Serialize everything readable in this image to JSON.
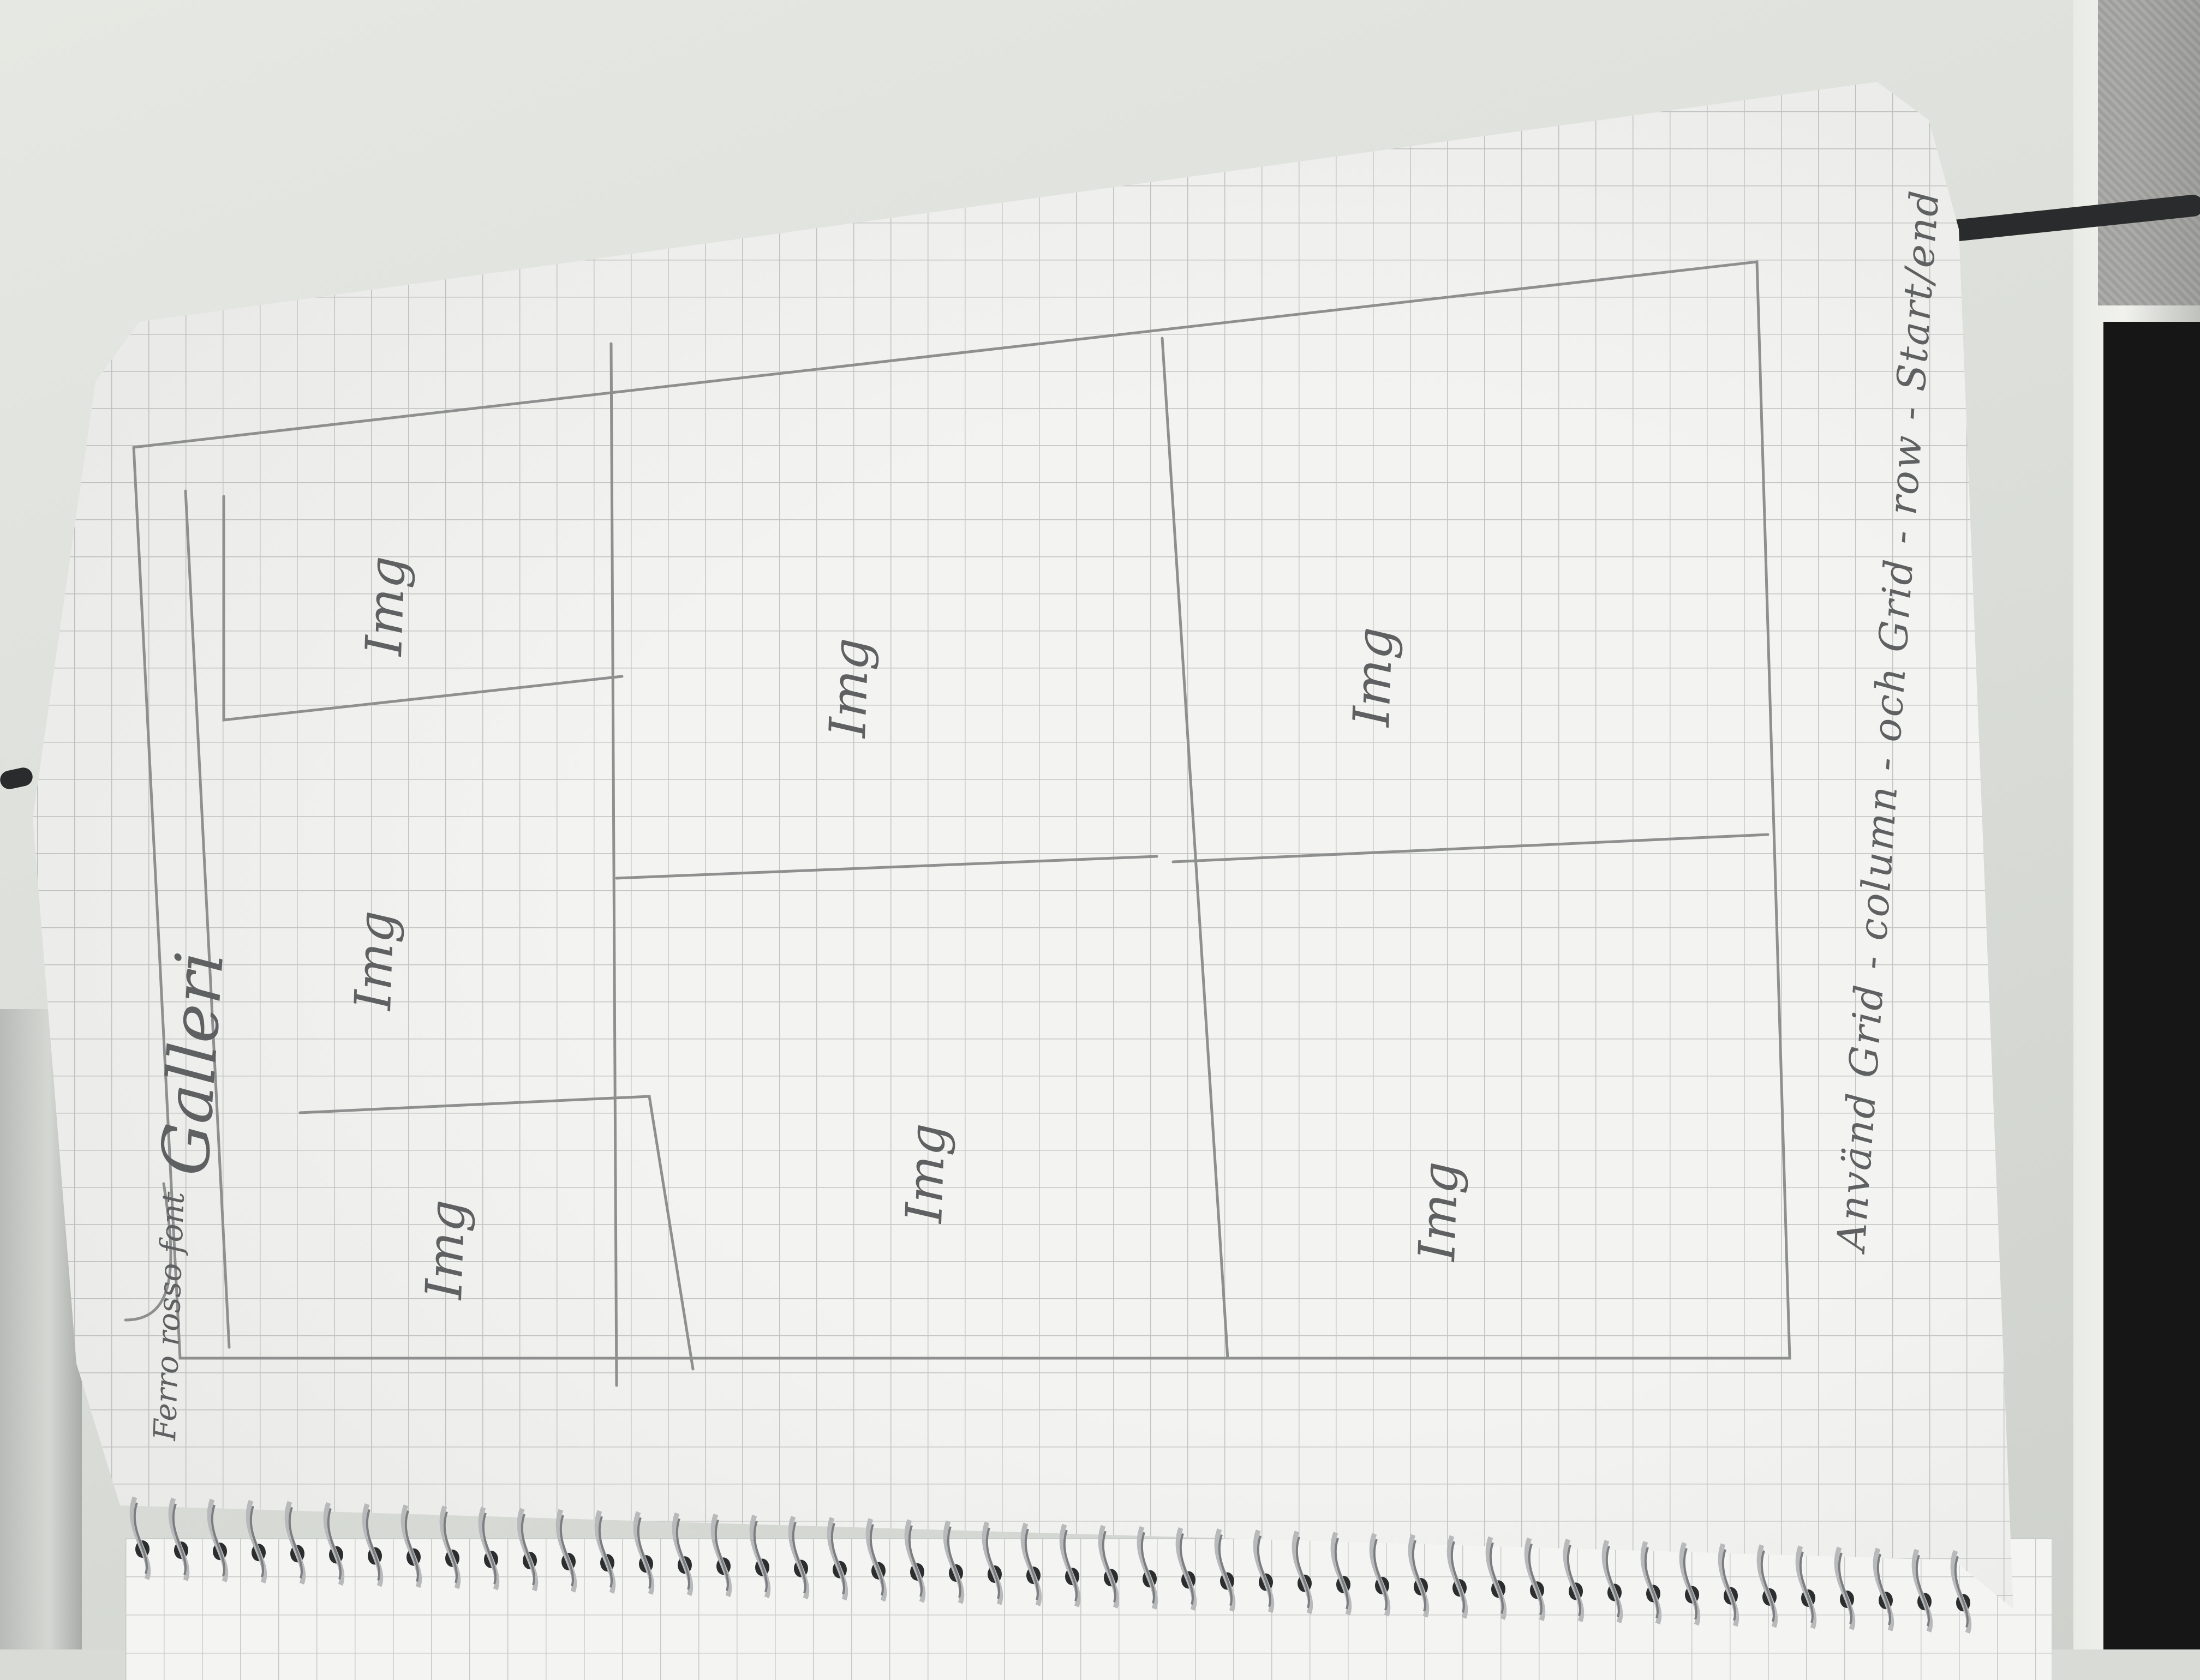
{
  "sketch": {
    "header_label": "Ferro rosso font",
    "title": "Galleri",
    "images": [
      {
        "label": "Img"
      },
      {
        "label": "Img"
      },
      {
        "label": "Img"
      },
      {
        "label": "Img"
      },
      {
        "label": "Img"
      },
      {
        "label": "Img"
      },
      {
        "label": "Img"
      }
    ],
    "note": "Använd Grid - column - och Grid - row - Start/end"
  },
  "colors": {
    "paper": "#f3f3f1",
    "grid": "#c3c5c4",
    "pencil": "#8e8f8f",
    "desk": "#dcdfda"
  }
}
